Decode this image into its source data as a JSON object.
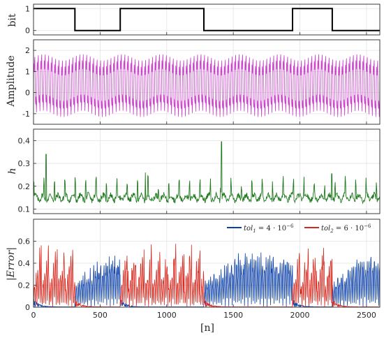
{
  "chart_data": [
    {
      "type": "line",
      "title": "",
      "xlabel": "",
      "ylabel": "bit",
      "xlim": [
        0,
        2600
      ],
      "ylim": [
        -0.2,
        1.2
      ],
      "yticks": [
        "0",
        "1"
      ],
      "grid": true,
      "series": [
        {
          "color": "#000000",
          "step": true,
          "x": [
            0,
            311,
            311,
            651,
            651,
            1279,
            1279,
            1945,
            1945,
            2243,
            2243,
            2600
          ],
          "y": [
            1,
            1,
            0,
            0,
            1,
            1,
            0,
            0,
            1,
            1,
            0,
            0
          ]
        }
      ]
    },
    {
      "type": "line",
      "title": "",
      "xlabel": "",
      "ylabel": "Amplitude",
      "xlim": [
        0,
        2600
      ],
      "ylim": [
        -1.5,
        2.5
      ],
      "yticks": [
        "-1",
        "0",
        "1",
        "2"
      ],
      "grid": true,
      "series": [
        {
          "color": "#cc44cc",
          "description": "oscillating signal, approximately between -1.3 and 1.95, period about 26 samples"
        }
      ]
    },
    {
      "type": "line",
      "title": "",
      "xlabel": "",
      "ylabel": "h",
      "xlim": [
        0,
        2600
      ],
      "ylim": [
        0.08,
        0.45
      ],
      "yticks": [
        "0.1",
        "0.2",
        "0.3",
        "0.4"
      ],
      "grid": true,
      "series": [
        {
          "color": "#1f7a1f",
          "baseline": 0.15,
          "spikes": [
            {
              "x": 95,
              "y": 0.34
            },
            {
              "x": 1411,
              "y": 0.395
            },
            {
              "x": 840,
              "y": 0.26
            },
            {
              "x": 2240,
              "y": 0.255
            }
          ]
        }
      ]
    },
    {
      "type": "line",
      "title": "",
      "xlabel": "[n]",
      "ylabel": "|Error|",
      "xlim": [
        0,
        2600
      ],
      "ylim": [
        0,
        0.8
      ],
      "xticks": [
        "0",
        "500",
        "1000",
        "1500",
        "2000",
        "2500"
      ],
      "yticks": [
        "0",
        "0.2",
        "0.4",
        "0.6"
      ],
      "grid": true,
      "legend": "top-right",
      "series": [
        {
          "name": "tol1 = 4·10^-6",
          "color": "#0b3fa8",
          "active_when_bit": 0
        },
        {
          "name": "tol2 = 6·10^-6",
          "color": "#d9261c",
          "active_when_bit": 1
        }
      ]
    }
  ],
  "legend_text": {
    "tol1": "tol",
    "tol1_sub": "1",
    "tol1_eq": " = 4 · 10",
    "tol1_exp": "−6",
    "tol2": "tol",
    "tol2_sub": "2",
    "tol2_eq": " = 6 · 10",
    "tol2_exp": "−6"
  },
  "labels": {
    "ylabel_bit": "bit",
    "ylabel_amp": "Amplitude",
    "ylabel_h": "h",
    "ylabel_err": "|Error|",
    "xlabel": "[n]"
  }
}
